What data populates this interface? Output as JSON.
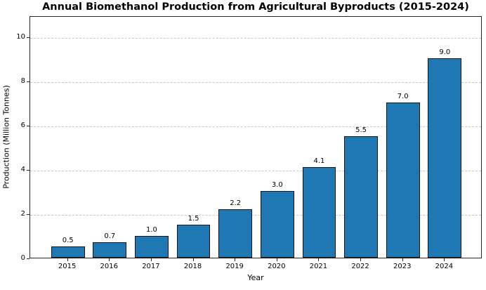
{
  "chart_data": {
    "type": "bar",
    "title": "Annual Biomethanol Production from Agricultural Byproducts (2015-2024)",
    "xlabel": "Year",
    "ylabel": "Production (Million Tonnes)",
    "categories": [
      "2015",
      "2016",
      "2017",
      "2018",
      "2019",
      "2020",
      "2021",
      "2022",
      "2023",
      "2024"
    ],
    "values": [
      0.5,
      0.7,
      1.0,
      1.5,
      2.2,
      3.0,
      4.1,
      5.5,
      7.0,
      9.0
    ],
    "bar_labels": [
      "0.5",
      "0.7",
      "1.0",
      "1.5",
      "2.2",
      "3.0",
      "4.1",
      "5.5",
      "7.0",
      "9.0"
    ],
    "yticks": [
      0,
      2,
      4,
      6,
      8,
      10
    ],
    "ylim": [
      0,
      10.95
    ],
    "xlim_units": [
      -0.9,
      9.9
    ],
    "bar_width_units": 0.8,
    "grid": "horizontal-dashed",
    "legend": "none",
    "colors": {
      "bar_fill": "#1f77b4",
      "bar_edge": "#141414",
      "grid_color": "#c9c9c9",
      "spine_color": "#262626",
      "text_color": "#000000",
      "background": "#ffffff"
    }
  }
}
